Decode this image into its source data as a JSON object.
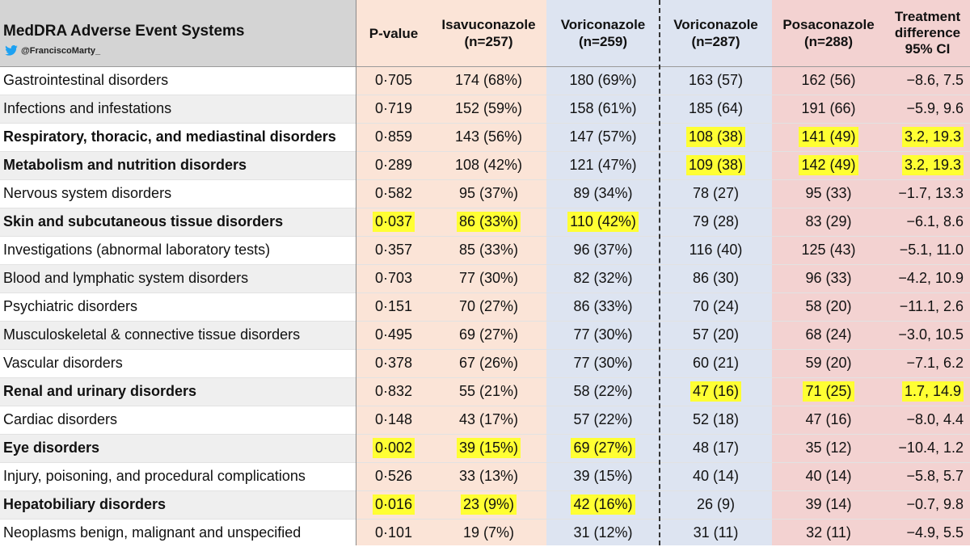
{
  "header": {
    "title": "MedDRA Adverse Event Systems",
    "twitter_handle": "@FranciscoMarty_",
    "twitter_icon_color": "#1da1f2",
    "columns": {
      "pvalue": "P-value",
      "isavuconazole": [
        "Isavuconazole",
        "(n=257)"
      ],
      "voriconazole1": [
        "Voriconazole",
        "(n=259)"
      ],
      "voriconazole2": [
        "Voriconazole",
        "(n=287)"
      ],
      "posaconazole": [
        "Posaconazole",
        "(n=288)"
      ],
      "treatment_diff": [
        "Treatment",
        "difference",
        "95% CI"
      ]
    }
  },
  "colors": {
    "highlight": "#ffff33",
    "isavuconazole_bg": "#fbe4d7",
    "voriconazole_bg": "#dde4f1",
    "posaconazole_bg": "#f3d2d1"
  },
  "rows": [
    {
      "name": "Gastrointestinal disorders",
      "pvalue": "0·705",
      "isa": "174 (68%)",
      "vor1": "180 (69%)",
      "vor2": "163 (57)",
      "pos": "162 (56)",
      "diff": "−8.6, 7.5",
      "bold": false,
      "hl": []
    },
    {
      "name": "Infections and infestations",
      "pvalue": "0·719",
      "isa": "152 (59%)",
      "vor1": "158 (61%)",
      "vor2": "185 (64)",
      "pos": "191 (66)",
      "diff": "−5.9, 9.6",
      "bold": false,
      "hl": []
    },
    {
      "name": "Respiratory, thoracic, and mediastinal disorders",
      "pvalue": "0·859",
      "isa": "143 (56%)",
      "vor1": "147 (57%)",
      "vor2": "108 (38)",
      "pos": "141 (49)",
      "diff": "3.2, 19.3",
      "bold": true,
      "hl": [
        "vor2",
        "pos",
        "diff"
      ]
    },
    {
      "name": "Metabolism and nutrition disorders",
      "pvalue": "0·289",
      "isa": "108 (42%)",
      "vor1": "121 (47%)",
      "vor2": "109 (38)",
      "pos": "142 (49)",
      "diff": "3.2, 19.3",
      "bold": true,
      "hl": [
        "vor2",
        "pos",
        "diff"
      ]
    },
    {
      "name": "Nervous system disorders",
      "pvalue": "0·582",
      "isa": "95 (37%)",
      "vor1": "89 (34%)",
      "vor2": "78 (27)",
      "pos": "95 (33)",
      "diff": "−1.7, 13.3",
      "bold": false,
      "hl": []
    },
    {
      "name": "Skin and subcutaneous tissue disorders",
      "pvalue": "0·037",
      "isa": "86 (33%)",
      "vor1": "110 (42%)",
      "vor2": "79 (28)",
      "pos": "83 (29)",
      "diff": "−6.1, 8.6",
      "bold": true,
      "hl": [
        "pvalue",
        "isa",
        "vor1"
      ]
    },
    {
      "name": "Investigations (abnormal laboratory tests)",
      "pvalue": "0·357",
      "isa": "85 (33%)",
      "vor1": "96 (37%)",
      "vor2": "116 (40)",
      "pos": "125 (43)",
      "diff": "−5.1, 11.0",
      "bold": false,
      "hl": []
    },
    {
      "name": "Blood and lymphatic system disorders",
      "pvalue": "0·703",
      "isa": "77 (30%)",
      "vor1": "82 (32%)",
      "vor2": "86 (30)",
      "pos": "96 (33)",
      "diff": "−4.2, 10.9",
      "bold": false,
      "hl": []
    },
    {
      "name": "Psychiatric disorders",
      "pvalue": "0·151",
      "isa": "70 (27%)",
      "vor1": "86 (33%)",
      "vor2": "70 (24)",
      "pos": "58 (20)",
      "diff": "−11.1, 2.6",
      "bold": false,
      "hl": []
    },
    {
      "name": "Musculoskeletal & connective tissue disorders",
      "pvalue": "0·495",
      "isa": "69 (27%)",
      "vor1": "77 (30%)",
      "vor2": "57 (20)",
      "pos": "68 (24)",
      "diff": "−3.0, 10.5",
      "bold": false,
      "hl": []
    },
    {
      "name": "Vascular disorders",
      "pvalue": "0·378",
      "isa": "67 (26%)",
      "vor1": "77 (30%)",
      "vor2": "60 (21)",
      "pos": "59 (20)",
      "diff": "−7.1, 6.2",
      "bold": false,
      "hl": []
    },
    {
      "name": "Renal and urinary disorders",
      "pvalue": "0·832",
      "isa": "55 (21%)",
      "vor1": "58 (22%)",
      "vor2": "47 (16)",
      "pos": "71 (25)",
      "diff": "1.7, 14.9",
      "bold": true,
      "hl": [
        "vor2",
        "pos",
        "diff"
      ]
    },
    {
      "name": "Cardiac disorders",
      "pvalue": "0·148",
      "isa": "43 (17%)",
      "vor1": "57 (22%)",
      "vor2": "52 (18)",
      "pos": "47 (16)",
      "diff": "−8.0, 4.4",
      "bold": false,
      "hl": []
    },
    {
      "name": "Eye disorders",
      "pvalue": "0·002",
      "isa": "39 (15%)",
      "vor1": "69 (27%)",
      "vor2": "48 (17)",
      "pos": "35 (12)",
      "diff": "−10.4, 1.2",
      "bold": true,
      "hl": [
        "pvalue",
        "isa",
        "vor1"
      ]
    },
    {
      "name": "Injury, poisoning, and procedural complications",
      "pvalue": "0·526",
      "isa": "33 (13%)",
      "vor1": "39 (15%)",
      "vor2": "40 (14)",
      "pos": "40 (14)",
      "diff": "−5.8, 5.7",
      "bold": false,
      "hl": []
    },
    {
      "name": "Hepatobiliary disorders",
      "pvalue": "0·016",
      "isa": "23 (9%)",
      "vor1": "42 (16%)",
      "vor2": "26 (9)",
      "pos": "39 (14)",
      "diff": "−0.7, 9.8",
      "bold": true,
      "hl": [
        "pvalue",
        "isa",
        "vor1"
      ]
    },
    {
      "name": "Neoplasms benign, malignant and unspecified",
      "pvalue": "0·101",
      "isa": "19 (7%)",
      "vor1": "31 (12%)",
      "vor2": "31 (11)",
      "pos": "32 (11)",
      "diff": "−4.9, 5.5",
      "bold": false,
      "hl": []
    }
  ]
}
